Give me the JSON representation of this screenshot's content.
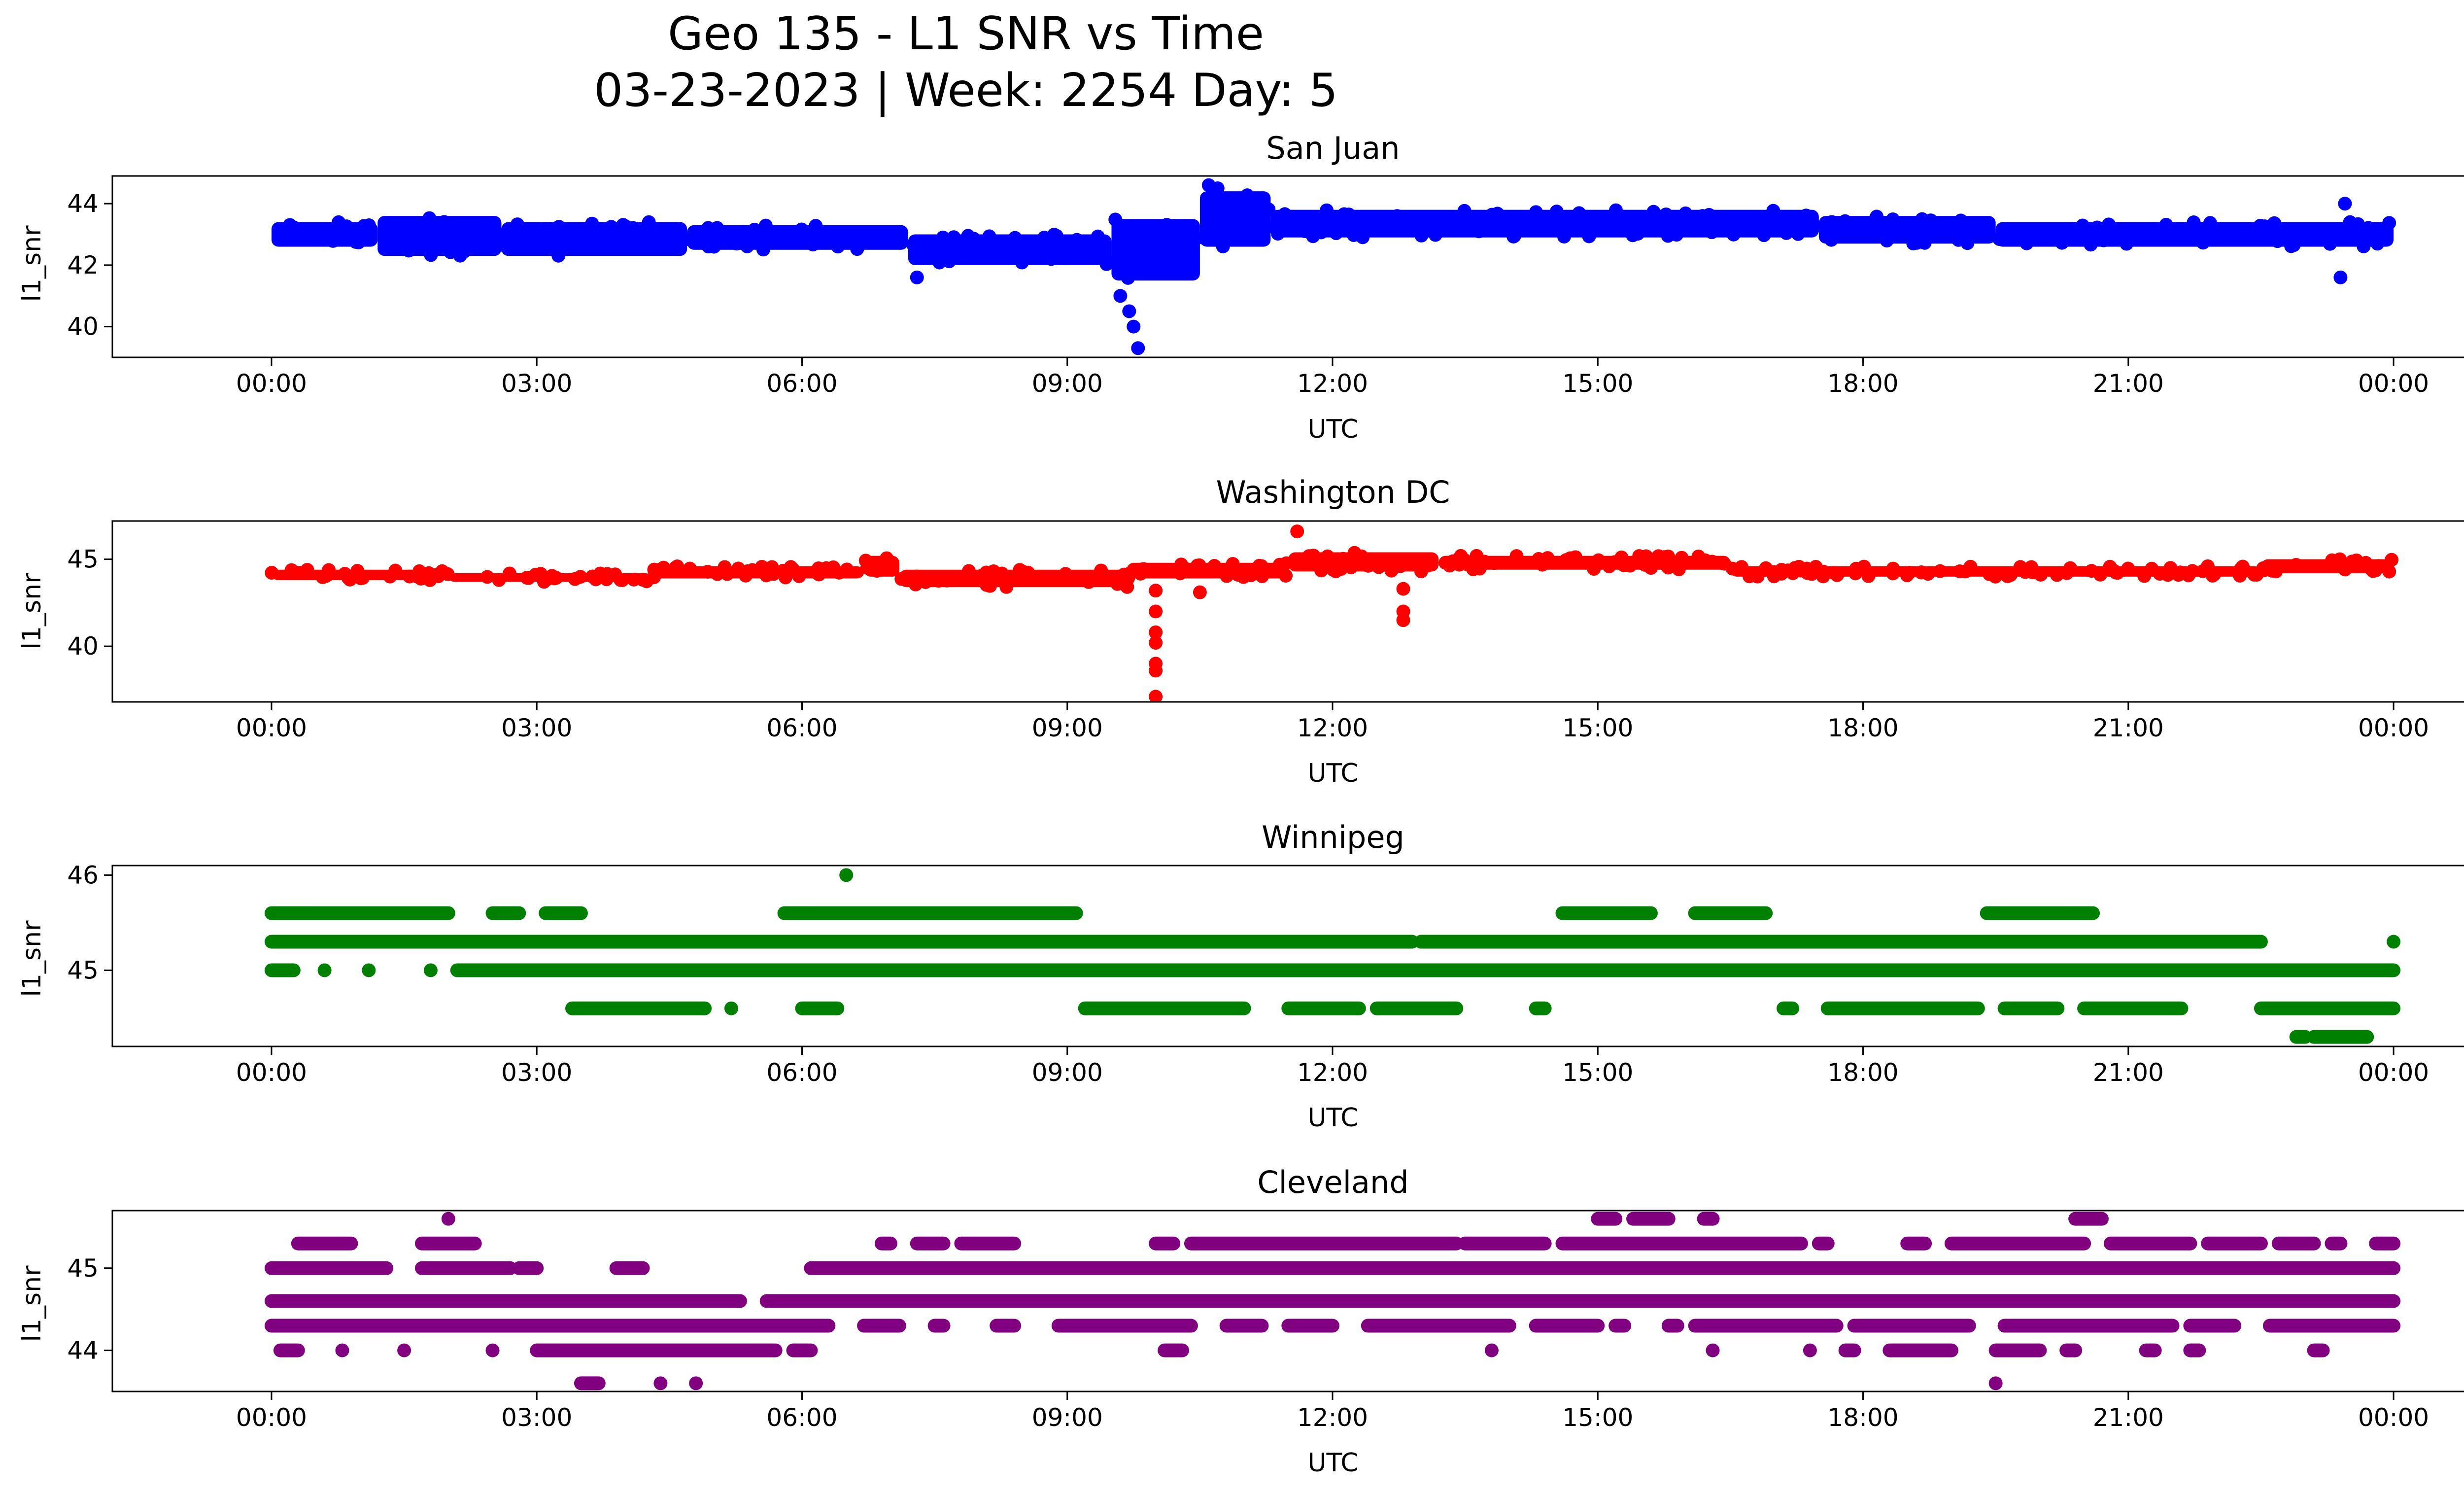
{
  "figure": {
    "title_line1": "Geo 135 - L1 SNR vs Time",
    "title_line2": "03-23-2023 | Week: 2254 Day: 5"
  },
  "chart_data": [
    {
      "type": "scatter",
      "title": "San Juan",
      "xlabel": "UTC",
      "ylabel": "l1_snr",
      "color": "#0000ff",
      "x_unit": "hours",
      "xlim": [
        "2023-03-22 22:12",
        "2023-03-24 01:50"
      ],
      "ylim": [
        39.0,
        44.9
      ],
      "x_ticks": [
        "00:00",
        "03:00",
        "06:00",
        "09:00",
        "12:00",
        "15:00",
        "18:00",
        "21:00",
        "00:00"
      ],
      "y_ticks": [
        40,
        42,
        44
      ],
      "band_segments": [
        {
          "start": 0.0,
          "end": 1.2,
          "low": 42.6,
          "high": 43.4
        },
        {
          "start": 1.2,
          "end": 2.6,
          "low": 42.3,
          "high": 43.6
        },
        {
          "start": 2.6,
          "end": 4.7,
          "low": 42.3,
          "high": 43.4
        },
        {
          "start": 4.7,
          "end": 7.2,
          "low": 42.5,
          "high": 43.3
        },
        {
          "start": 7.2,
          "end": 9.5,
          "low": 42.0,
          "high": 43.0
        },
        {
          "start": 9.5,
          "end": 10.5,
          "low": 41.5,
          "high": 43.5
        },
        {
          "start": 10.5,
          "end": 11.3,
          "low": 42.6,
          "high": 44.4
        },
        {
          "start": 11.3,
          "end": 17.5,
          "low": 42.9,
          "high": 43.8
        },
        {
          "start": 17.5,
          "end": 19.5,
          "low": 42.7,
          "high": 43.6
        },
        {
          "start": 19.5,
          "end": 24.0,
          "low": 42.6,
          "high": 43.4
        }
      ],
      "outliers": [
        {
          "x": 7.3,
          "y": 41.6
        },
        {
          "x": 9.6,
          "y": 41.0
        },
        {
          "x": 9.7,
          "y": 40.5
        },
        {
          "x": 9.75,
          "y": 40.0
        },
        {
          "x": 9.8,
          "y": 39.3
        },
        {
          "x": 9.9,
          "y": 42.2
        },
        {
          "x": 10.6,
          "y": 44.6
        },
        {
          "x": 10.7,
          "y": 44.5
        },
        {
          "x": 23.4,
          "y": 41.6
        },
        {
          "x": 23.45,
          "y": 44.0
        }
      ]
    },
    {
      "type": "scatter",
      "title": "Washington DC",
      "xlabel": "UTC",
      "ylabel": "l1_snr",
      "color": "#ff0000",
      "x_unit": "hours",
      "xlim": [
        "2023-03-22 22:12",
        "2023-03-24 01:50"
      ],
      "ylim": [
        36.8,
        47.2
      ],
      "x_ticks": [
        "00:00",
        "03:00",
        "06:00",
        "09:00",
        "12:00",
        "15:00",
        "18:00",
        "21:00",
        "00:00"
      ],
      "y_ticks": [
        40,
        45
      ],
      "band_segments": [
        {
          "start": 0.0,
          "end": 2.0,
          "low": 43.8,
          "high": 44.4
        },
        {
          "start": 2.0,
          "end": 4.3,
          "low": 43.7,
          "high": 44.2
        },
        {
          "start": 4.3,
          "end": 6.7,
          "low": 43.9,
          "high": 44.6
        },
        {
          "start": 6.7,
          "end": 7.1,
          "low": 44.0,
          "high": 45.2
        },
        {
          "start": 7.1,
          "end": 9.7,
          "low": 43.4,
          "high": 44.4
        },
        {
          "start": 9.7,
          "end": 11.5,
          "low": 43.9,
          "high": 44.8
        },
        {
          "start": 11.5,
          "end": 13.2,
          "low": 44.3,
          "high": 45.4
        },
        {
          "start": 13.2,
          "end": 16.5,
          "low": 44.4,
          "high": 45.2
        },
        {
          "start": 16.5,
          "end": 22.5,
          "low": 44.0,
          "high": 44.6
        },
        {
          "start": 22.5,
          "end": 24.0,
          "low": 44.2,
          "high": 45.0
        }
      ],
      "outliers": [
        {
          "x": 10.0,
          "y": 43.2
        },
        {
          "x": 10.0,
          "y": 42.0
        },
        {
          "x": 10.0,
          "y": 40.8
        },
        {
          "x": 10.0,
          "y": 40.2
        },
        {
          "x": 10.0,
          "y": 39.0
        },
        {
          "x": 10.0,
          "y": 38.6
        },
        {
          "x": 10.0,
          "y": 37.1
        },
        {
          "x": 10.5,
          "y": 43.1
        },
        {
          "x": 11.6,
          "y": 46.6
        },
        {
          "x": 12.8,
          "y": 43.3
        },
        {
          "x": 12.8,
          "y": 42.0
        },
        {
          "x": 12.8,
          "y": 41.5
        }
      ]
    },
    {
      "type": "scatter",
      "title": "Winnipeg",
      "xlabel": "UTC",
      "ylabel": "l1_snr",
      "color": "#008000",
      "x_unit": "hours",
      "xlim": [
        "2023-03-22 22:12",
        "2023-03-24 01:50"
      ],
      "ylim": [
        44.2,
        46.1
      ],
      "x_ticks": [
        "00:00",
        "03:00",
        "06:00",
        "09:00",
        "12:00",
        "15:00",
        "18:00",
        "21:00",
        "00:00"
      ],
      "y_ticks": [
        45,
        46
      ],
      "rows": [
        {
          "y": 45.6,
          "segments": [
            [
              0.0,
              2.0
            ],
            [
              2.5,
              2.8
            ],
            [
              3.1,
              3.5
            ],
            [
              5.8,
              9.1
            ],
            [
              14.6,
              15.6
            ],
            [
              16.1,
              16.9
            ],
            [
              19.4,
              20.6
            ]
          ]
        },
        {
          "y": 45.3,
          "segments": [
            [
              0.0,
              12.9
            ],
            [
              13.0,
              22.5
            ]
          ]
        },
        {
          "y": 45.0,
          "segments": [
            [
              0.0,
              0.25
            ],
            [
              0.6,
              0.6
            ],
            [
              1.1,
              1.1
            ],
            [
              1.8,
              1.8
            ],
            [
              2.1,
              24.0
            ]
          ]
        },
        {
          "y": 44.6,
          "segments": [
            [
              3.4,
              4.9
            ],
            [
              5.2,
              5.2
            ],
            [
              6.0,
              6.4
            ],
            [
              9.2,
              11.0
            ],
            [
              11.5,
              12.3
            ],
            [
              12.5,
              13.4
            ],
            [
              14.3,
              14.4
            ],
            [
              17.1,
              17.2
            ],
            [
              17.6,
              19.3
            ],
            [
              19.6,
              20.2
            ],
            [
              20.5,
              21.6
            ],
            [
              22.5,
              24.0
            ]
          ]
        },
        {
          "y": 44.3,
          "segments": [
            [
              22.9,
              23.0
            ],
            [
              23.1,
              23.7
            ]
          ]
        }
      ],
      "outliers": [
        {
          "x": 6.5,
          "y": 46.0
        },
        {
          "x": 24.0,
          "y": 45.3
        }
      ]
    },
    {
      "type": "scatter",
      "title": "Cleveland",
      "xlabel": "UTC",
      "ylabel": "l1_snr",
      "color": "#800080",
      "x_unit": "hours",
      "xlim": [
        "2023-03-22 22:12",
        "2023-03-24 01:50"
      ],
      "ylim": [
        43.5,
        45.7
      ],
      "x_ticks": [
        "00:00",
        "03:00",
        "06:00",
        "09:00",
        "12:00",
        "15:00",
        "18:00",
        "21:00",
        "00:00"
      ],
      "y_ticks": [
        44,
        45
      ],
      "rows": [
        {
          "y": 45.6,
          "segments": [
            [
              2.0,
              2.0
            ],
            [
              15.0,
              15.2
            ],
            [
              15.4,
              15.8
            ],
            [
              16.2,
              16.3
            ],
            [
              20.4,
              20.7
            ]
          ]
        },
        {
          "y": 45.3,
          "segments": [
            [
              0.3,
              0.9
            ],
            [
              1.7,
              2.3
            ],
            [
              6.9,
              7.0
            ],
            [
              7.3,
              7.6
            ],
            [
              7.8,
              8.4
            ],
            [
              10.0,
              10.2
            ],
            [
              10.4,
              13.4
            ],
            [
              13.5,
              14.4
            ],
            [
              14.6,
              17.3
            ],
            [
              17.5,
              17.6
            ],
            [
              18.5,
              18.7
            ],
            [
              19.0,
              20.5
            ],
            [
              20.8,
              21.7
            ],
            [
              21.9,
              22.5
            ],
            [
              22.7,
              23.1
            ],
            [
              23.3,
              23.4
            ],
            [
              23.8,
              24.0
            ]
          ]
        },
        {
          "y": 45.0,
          "segments": [
            [
              0.0,
              1.3
            ],
            [
              1.7,
              2.7
            ],
            [
              2.8,
              3.0
            ],
            [
              3.9,
              4.2
            ],
            [
              6.1,
              24.0
            ]
          ]
        },
        {
          "y": 44.6,
          "segments": [
            [
              0.0,
              5.3
            ],
            [
              5.6,
              24.0
            ]
          ]
        },
        {
          "y": 44.3,
          "segments": [
            [
              0.0,
              6.3
            ],
            [
              6.7,
              7.1
            ],
            [
              7.5,
              7.6
            ],
            [
              8.2,
              8.4
            ],
            [
              8.9,
              10.4
            ],
            [
              10.8,
              11.2
            ],
            [
              11.5,
              12.0
            ],
            [
              12.4,
              14.0
            ],
            [
              14.3,
              15.0
            ],
            [
              15.2,
              15.3
            ],
            [
              15.8,
              15.9
            ],
            [
              16.1,
              17.7
            ],
            [
              17.9,
              19.2
            ],
            [
              19.6,
              21.5
            ],
            [
              21.7,
              22.2
            ],
            [
              22.6,
              24.0
            ]
          ]
        },
        {
          "y": 44.0,
          "segments": [
            [
              0.1,
              0.3
            ],
            [
              0.8,
              0.8
            ],
            [
              1.5,
              1.5
            ],
            [
              2.5,
              2.5
            ],
            [
              3.0,
              5.7
            ],
            [
              5.9,
              6.1
            ],
            [
              10.1,
              10.3
            ],
            [
              13.8,
              13.8
            ],
            [
              16.3,
              16.3
            ],
            [
              17.4,
              17.4
            ],
            [
              17.8,
              17.9
            ],
            [
              18.3,
              19.0
            ],
            [
              19.5,
              20.0
            ],
            [
              20.3,
              20.4
            ],
            [
              21.2,
              21.3
            ],
            [
              21.7,
              21.8
            ],
            [
              23.1,
              23.2
            ]
          ]
        },
        {
          "y": 43.6,
          "segments": [
            [
              3.5,
              3.7
            ],
            [
              4.4,
              4.4
            ],
            [
              4.8,
              4.8
            ],
            [
              19.5,
              19.5
            ]
          ]
        }
      ],
      "outliers": []
    }
  ]
}
